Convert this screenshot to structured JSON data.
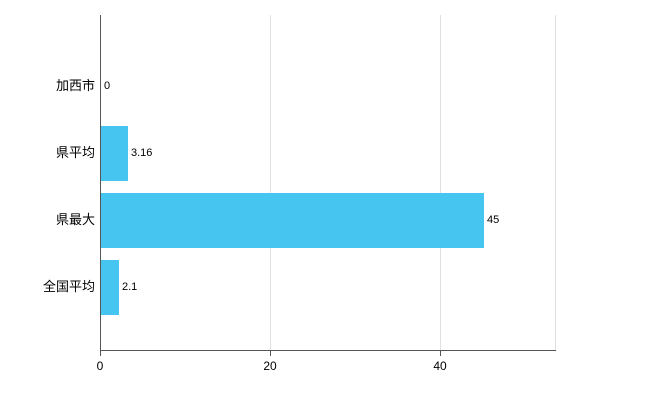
{
  "chart_data": {
    "type": "bar",
    "orientation": "horizontal",
    "title": "",
    "xlabel": "",
    "ylabel": "",
    "categories": [
      "加西市",
      "県平均",
      "県最大",
      "全国平均"
    ],
    "values": [
      0,
      3.16,
      45,
      2.1
    ],
    "value_labels": [
      "0",
      "3.16",
      "45",
      "2.1"
    ],
    "x_ticks": [
      0,
      20,
      40
    ],
    "x_tick_labels": [
      "0",
      "20",
      "40"
    ],
    "xlim": [
      0,
      53.5
    ],
    "grid": true,
    "legend": "none",
    "bar_color": "#45c5ef",
    "axis_color": "#555555",
    "gridline_color": "#e0e0e0",
    "background_color": "#ffffff",
    "text_color": "#000000"
  }
}
